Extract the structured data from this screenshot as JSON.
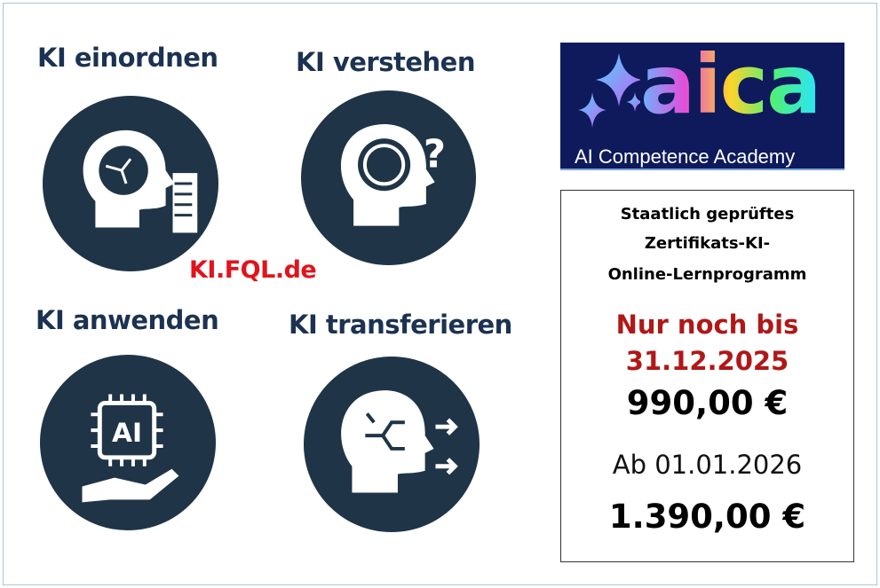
{
  "quadrants": [
    {
      "title": "KI einordnen",
      "icon": "head-brain-circuit-document-icon"
    },
    {
      "title": "KI verstehen",
      "icon": "head-brain-question-icon"
    },
    {
      "title": "KI anwenden",
      "icon": "hand-ai-chip-icon"
    },
    {
      "title": "KI transferieren",
      "icon": "head-circuit-arrows-icon"
    }
  ],
  "website": "KI.FQL.de",
  "logo": {
    "wordmark": "aica",
    "subtitle": "AI Competence Academy",
    "bg_color": "#0e1a5c"
  },
  "offer": {
    "line1": "Staatlich geprüftes",
    "line2": "Zertifikats-KI-",
    "line3": "Online-Lernprogramm",
    "deadline1": "Nur noch bis",
    "deadline2": "31.12.2025",
    "price_now": "990,00 €",
    "from_label": "Ab 01.01.2026",
    "price_later": "1.390,00 €",
    "deadline_color": "#b01818"
  },
  "colors": {
    "circle": "#1f3447",
    "title": "#1c3252",
    "website": "#e0141c"
  }
}
